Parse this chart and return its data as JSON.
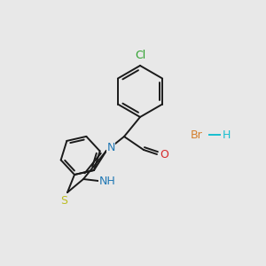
{
  "bg_color": "#e8e8e8",
  "bond_color": "#1a1a1a",
  "bond_width": 1.4,
  "atom_colors": {
    "Cl": "#2ca02c",
    "O": "#d62728",
    "N": "#1f77b4",
    "S": "#bcbd22",
    "Br": "#d47f2e",
    "H": "#17becf"
  },
  "font_size": 8.5
}
